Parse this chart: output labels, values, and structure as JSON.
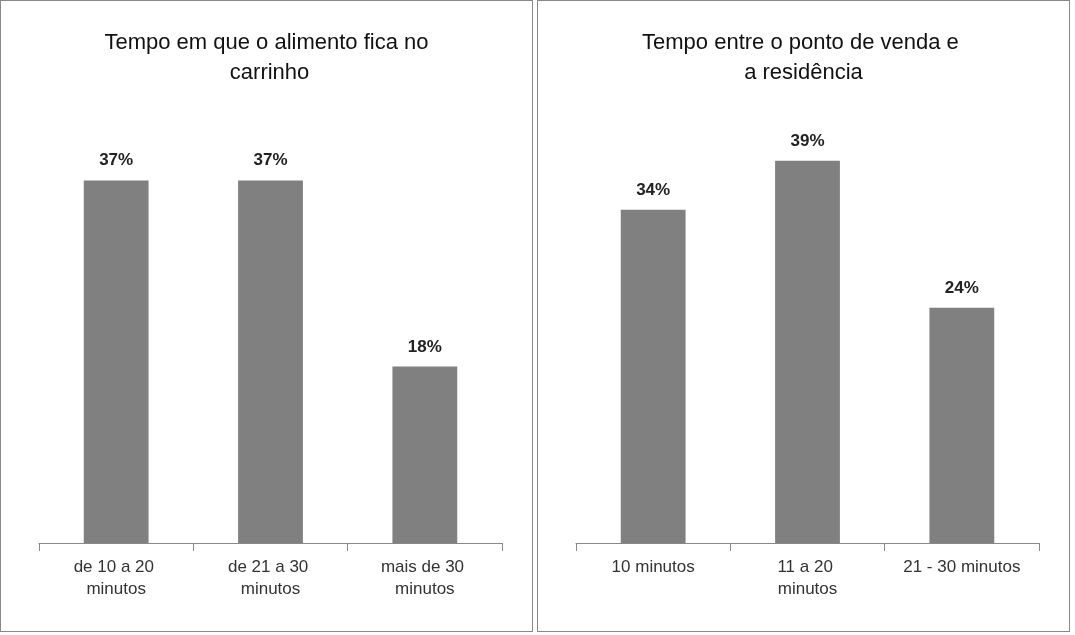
{
  "chart_data": [
    {
      "type": "bar",
      "title": "Tempo em que o alimento fica no carrinho",
      "categories": [
        "de 10 a 20 minutos",
        "de 21 a 30 minutos",
        "mais de 30 minutos"
      ],
      "values": [
        37,
        37,
        18
      ],
      "value_labels": [
        "37%",
        "37%",
        "18%"
      ],
      "color": "#808080"
    },
    {
      "type": "bar",
      "title": "Tempo entre o ponto de venda e a residência",
      "categories": [
        "10 minutos",
        "11 a 20 minutos",
        "21 - 30 minutos"
      ],
      "values": [
        34,
        39,
        24
      ],
      "value_labels": [
        "34%",
        "39%",
        "24%"
      ],
      "color": "#808080"
    }
  ]
}
